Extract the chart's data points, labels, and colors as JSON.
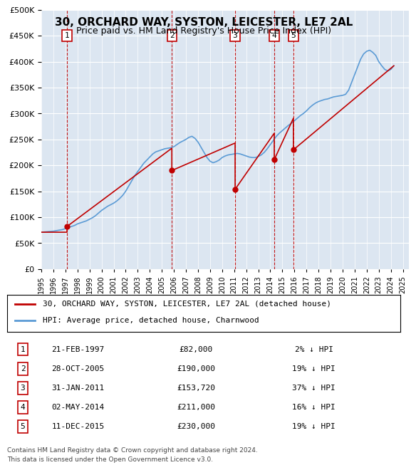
{
  "title": "30, ORCHARD WAY, SYSTON, LEICESTER, LE7 2AL",
  "subtitle": "Price paid vs. HM Land Registry's House Price Index (HPI)",
  "legend_line1": "30, ORCHARD WAY, SYSTON, LEICESTER, LE7 2AL (detached house)",
  "legend_line2": "HPI: Average price, detached house, Charnwood",
  "footer1": "Contains HM Land Registry data © Crown copyright and database right 2024.",
  "footer2": "This data is licensed under the Open Government Licence v3.0.",
  "transactions": [
    {
      "num": 1,
      "date": "21-FEB-1997",
      "price": 82000,
      "pct": "2%",
      "year_x": 1997.13
    },
    {
      "num": 2,
      "date": "28-OCT-2005",
      "price": 190000,
      "pct": "19%",
      "year_x": 2005.83
    },
    {
      "num": 3,
      "date": "31-JAN-2011",
      "price": 153720,
      "pct": "37%",
      "year_x": 2011.08
    },
    {
      "num": 4,
      "date": "02-MAY-2014",
      "price": 211000,
      "pct": "16%",
      "year_x": 2014.33
    },
    {
      "num": 5,
      "date": "11-DEC-2015",
      "price": 230000,
      "pct": "19%",
      "year_x": 2015.92
    }
  ],
  "hpi_color": "#5b9bd5",
  "sale_color": "#c00000",
  "marker_box_color": "#c00000",
  "background_color": "#dce6f1",
  "plot_bg_color": "#dce6f1",
  "ylim": [
    0,
    500000
  ],
  "xlim_start": 1995,
  "xlim_end": 2025.5,
  "yticks": [
    0,
    50000,
    100000,
    150000,
    200000,
    250000,
    300000,
    350000,
    400000,
    450000,
    500000
  ],
  "hpi_data": {
    "years": [
      1995,
      1995.25,
      1995.5,
      1995.75,
      1996,
      1996.25,
      1996.5,
      1996.75,
      1997,
      1997.25,
      1997.5,
      1997.75,
      1998,
      1998.25,
      1998.5,
      1998.75,
      1999,
      1999.25,
      1999.5,
      1999.75,
      2000,
      2000.25,
      2000.5,
      2000.75,
      2001,
      2001.25,
      2001.5,
      2001.75,
      2002,
      2002.25,
      2002.5,
      2002.75,
      2003,
      2003.25,
      2003.5,
      2003.75,
      2004,
      2004.25,
      2004.5,
      2004.75,
      2005,
      2005.25,
      2005.5,
      2005.75,
      2006,
      2006.25,
      2006.5,
      2006.75,
      2007,
      2007.25,
      2007.5,
      2007.75,
      2008,
      2008.25,
      2008.5,
      2008.75,
      2009,
      2009.25,
      2009.5,
      2009.75,
      2010,
      2010.25,
      2010.5,
      2010.75,
      2011,
      2011.25,
      2011.5,
      2011.75,
      2012,
      2012.25,
      2012.5,
      2012.75,
      2013,
      2013.25,
      2013.5,
      2013.75,
      2014,
      2014.25,
      2014.5,
      2014.75,
      2015,
      2015.25,
      2015.5,
      2015.75,
      2016,
      2016.25,
      2016.5,
      2016.75,
      2017,
      2017.25,
      2017.5,
      2017.75,
      2018,
      2018.25,
      2018.5,
      2018.75,
      2019,
      2019.25,
      2019.5,
      2019.75,
      2020,
      2020.25,
      2020.5,
      2020.75,
      2021,
      2021.25,
      2021.5,
      2021.75,
      2022,
      2022.25,
      2022.5,
      2022.75,
      2023,
      2023.25,
      2023.5,
      2023.75,
      2024,
      2024.25
    ],
    "values": [
      71000,
      71500,
      72000,
      72500,
      73000,
      74000,
      75000,
      76000,
      78000,
      80000,
      82000,
      84000,
      87000,
      89000,
      91000,
      93000,
      96000,
      99000,
      103000,
      108000,
      113000,
      117000,
      121000,
      124000,
      127000,
      131000,
      136000,
      142000,
      150000,
      160000,
      170000,
      180000,
      188000,
      196000,
      204000,
      210000,
      216000,
      222000,
      226000,
      228000,
      230000,
      232000,
      233000,
      234000,
      236000,
      240000,
      244000,
      247000,
      250000,
      254000,
      256000,
      252000,
      245000,
      235000,
      225000,
      215000,
      208000,
      205000,
      207000,
      210000,
      215000,
      218000,
      220000,
      221000,
      222000,
      223000,
      222000,
      220000,
      218000,
      216000,
      215000,
      215000,
      217000,
      220000,
      225000,
      232000,
      240000,
      248000,
      256000,
      262000,
      267000,
      272000,
      277000,
      281000,
      286000,
      291000,
      296000,
      300000,
      305000,
      311000,
      316000,
      320000,
      323000,
      325000,
      327000,
      328000,
      330000,
      332000,
      333000,
      334000,
      335000,
      337000,
      345000,
      360000,
      375000,
      390000,
      405000,
      415000,
      420000,
      422000,
      418000,
      412000,
      400000,
      392000,
      385000,
      382000,
      385000,
      392000
    ]
  },
  "sale_line_data": {
    "years": [
      1995,
      1997.13,
      1997.13,
      2005.83,
      2005.83,
      2011.08,
      2011.08,
      2014.33,
      2014.33,
      2015.92,
      2015.92,
      2024.25
    ],
    "values": [
      71000,
      71000,
      82000,
      233000,
      190000,
      243000,
      153720,
      262000,
      211000,
      291000,
      230000,
      392000
    ]
  }
}
